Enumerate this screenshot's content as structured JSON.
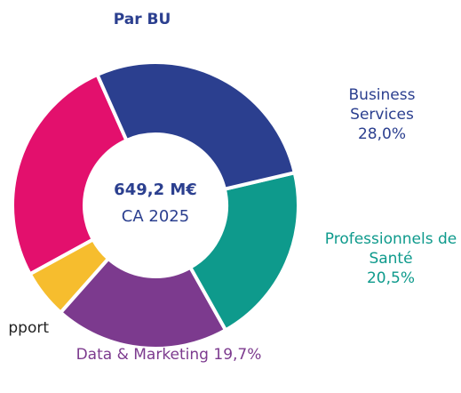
{
  "chart_data": {
    "type": "donut",
    "title": "Par BU",
    "center_text": [
      "649,2 M€",
      "CA 2025"
    ],
    "categories": [
      "Business Services",
      "Professionnels de Santé",
      "Data & Marketing",
      "pport",
      null
    ],
    "values": [
      28.0,
      20.5,
      19.7,
      5.5,
      26.3
    ],
    "value_labels": [
      "28,0%",
      "20,5%",
      "19,7%",
      null,
      null
    ],
    "colors": [
      "#2b3f8f",
      "#0e9a8c",
      "#7c3a8e",
      "#f6bd2e",
      "#e3106d"
    ]
  }
}
